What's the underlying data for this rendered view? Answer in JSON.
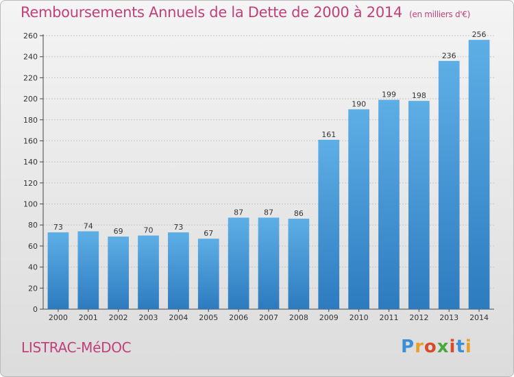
{
  "chart_data": {
    "type": "bar",
    "title": "Remboursements Annuels de la Dette de 2000 à 2014",
    "unit_note": "(en milliers d'€)",
    "categories": [
      "2000",
      "2001",
      "2002",
      "2003",
      "2004",
      "2005",
      "2006",
      "2007",
      "2008",
      "2009",
      "2010",
      "2011",
      "2012",
      "2013",
      "2014"
    ],
    "values": [
      73,
      74,
      69,
      70,
      73,
      67,
      87,
      87,
      86,
      161,
      190,
      199,
      198,
      236,
      256
    ],
    "ylim": [
      0,
      260
    ],
    "yticks": [
      0,
      20,
      40,
      60,
      80,
      100,
      120,
      140,
      160,
      180,
      200,
      220,
      240,
      260
    ],
    "grid": true,
    "bar_color_top": "#5eaee6",
    "bar_color_bottom": "#2d7bbf"
  },
  "commune": "LISTRAC-MéDOC",
  "logo": {
    "letters": [
      "P",
      "r",
      "o",
      "x",
      "i",
      "t",
      "i"
    ],
    "colors": [
      "#3a8fd6",
      "#e8a02a",
      "#d84b2a",
      "#4aa83a",
      "#d84b2a",
      "#3a8fd6",
      "#e8a02a"
    ]
  }
}
